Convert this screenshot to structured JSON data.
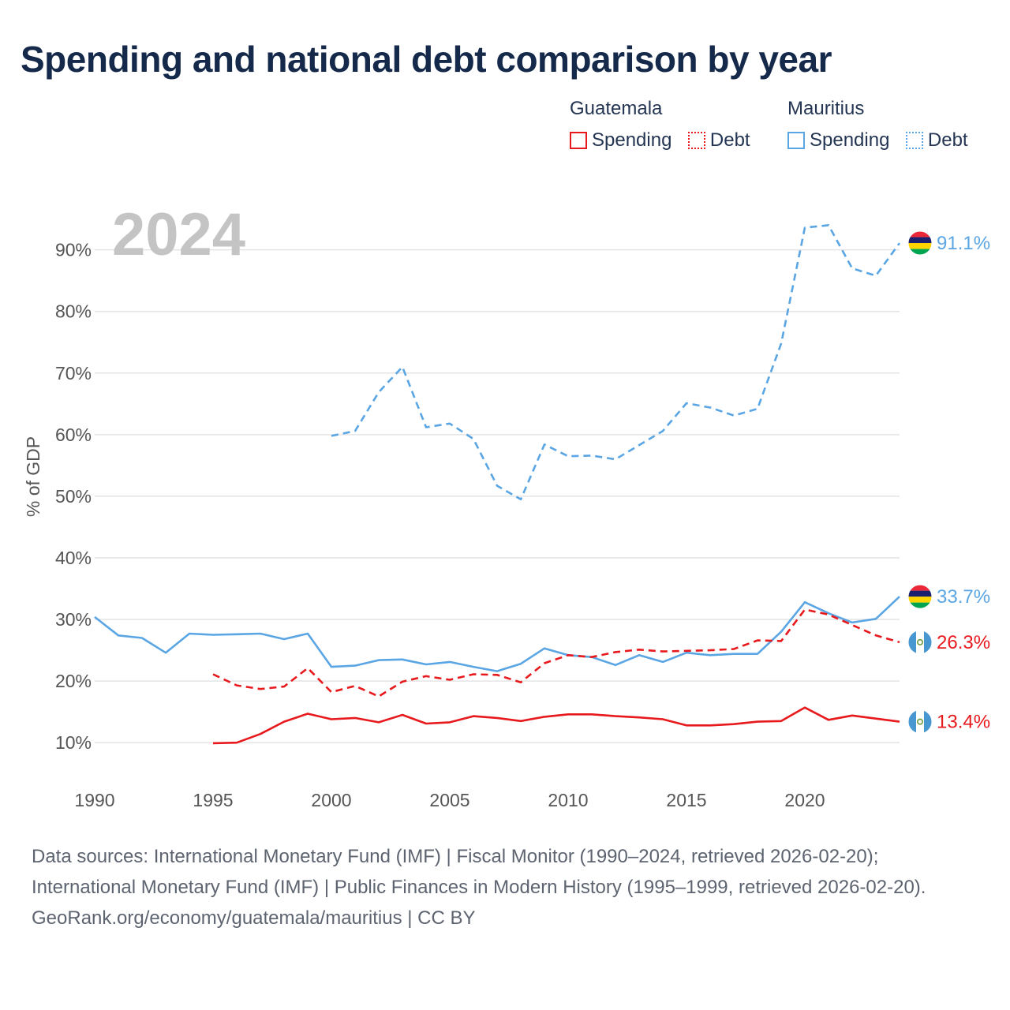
{
  "title": "Spending and national debt comparison by year",
  "legend": {
    "guatemala": {
      "name": "Guatemala",
      "spending": "Spending",
      "debt": "Debt"
    },
    "mauritius": {
      "name": "Mauritius",
      "spending": "Spending",
      "debt": "Debt"
    }
  },
  "colors": {
    "guatemala": "#e8191d",
    "mauritius": "#5aa5e3",
    "grid": "#e4e4e4"
  },
  "footer": {
    "sources": "Data sources: International Monetary Fund (IMF) | Fiscal Monitor (1990–2024, retrieved 2026-02-20); International Monetary Fund (IMF) | Public Finances in Modern History (1995–1999, retrieved 2026-02-20).",
    "credit": "GeoRank.org/economy/guatemala/mauritius | CC BY"
  },
  "chart_data": {
    "type": "line",
    "year_label": "2024",
    "ylabel": "% of GDP",
    "xlabel": "",
    "xlim": [
      1990,
      2024
    ],
    "ylim": [
      4,
      97
    ],
    "x_ticks": [
      1990,
      1995,
      2000,
      2005,
      2010,
      2015,
      2020
    ],
    "y_ticks": [
      {
        "value": 10,
        "label": "10%"
      },
      {
        "value": 20,
        "label": "20%"
      },
      {
        "value": 30,
        "label": "30%"
      },
      {
        "value": 40,
        "label": "40%"
      },
      {
        "value": 50,
        "label": "50%"
      },
      {
        "value": 60,
        "label": "60%"
      },
      {
        "value": 70,
        "label": "70%"
      },
      {
        "value": 80,
        "label": "80%"
      },
      {
        "value": 90,
        "label": "90%"
      }
    ],
    "series": [
      {
        "key": "mauritius-debt",
        "name": "Mauritius Debt",
        "country": "mauritius",
        "dashed": true,
        "x": [
          2000,
          2001,
          2002,
          2003,
          2004,
          2005,
          2006,
          2007,
          2008,
          2009,
          2010,
          2011,
          2012,
          2013,
          2014,
          2015,
          2016,
          2017,
          2018,
          2019,
          2020,
          2021,
          2022,
          2023,
          2024
        ],
        "values": [
          59.8,
          60.6,
          66.9,
          71.0,
          61.2,
          61.8,
          59.3,
          51.7,
          49.5,
          58.4,
          56.5,
          56.6,
          56.0,
          58.3,
          60.6,
          65.1,
          64.4,
          63.1,
          64.2,
          74.8,
          93.6,
          94.0,
          87.0,
          85.8,
          91.1
        ],
        "end_label": "91.1%"
      },
      {
        "key": "mauritius-spending",
        "name": "Mauritius Spending",
        "country": "mauritius",
        "dashed": false,
        "x": [
          1990,
          1991,
          1992,
          1993,
          1994,
          1995,
          1996,
          1997,
          1998,
          1999,
          2000,
          2001,
          2002,
          2003,
          2004,
          2005,
          2006,
          2007,
          2008,
          2009,
          2010,
          2011,
          2012,
          2013,
          2014,
          2015,
          2016,
          2017,
          2018,
          2019,
          2020,
          2021,
          2022,
          2023,
          2024
        ],
        "values": [
          30.4,
          27.4,
          27.0,
          24.6,
          27.7,
          27.5,
          27.6,
          27.7,
          26.8,
          27.7,
          22.3,
          22.5,
          23.4,
          23.5,
          22.7,
          23.1,
          22.3,
          21.6,
          22.8,
          25.3,
          24.2,
          23.9,
          22.6,
          24.2,
          23.1,
          24.6,
          24.2,
          24.4,
          24.4,
          28.0,
          32.8,
          31.0,
          29.5,
          30.1,
          33.7
        ],
        "end_label": "33.7%"
      },
      {
        "key": "guatemala-debt",
        "name": "Guatemala Debt",
        "country": "guatemala",
        "dashed": true,
        "x": [
          1995,
          1996,
          1997,
          1998,
          1999,
          2000,
          2001,
          2002,
          2003,
          2004,
          2005,
          2006,
          2007,
          2008,
          2009,
          2010,
          2011,
          2012,
          2013,
          2014,
          2015,
          2016,
          2017,
          2018,
          2019,
          2020,
          2021,
          2022,
          2023,
          2024
        ],
        "values": [
          21.1,
          19.3,
          18.7,
          19.1,
          22.1,
          18.2,
          19.2,
          17.5,
          19.9,
          20.8,
          20.2,
          21.1,
          21.0,
          19.8,
          22.9,
          24.2,
          23.9,
          24.7,
          25.1,
          24.8,
          24.9,
          25.0,
          25.2,
          26.6,
          26.5,
          31.6,
          30.8,
          29.1,
          27.4,
          26.3
        ],
        "end_label": "26.3%"
      },
      {
        "key": "guatemala-spending",
        "name": "Guatemala Spending",
        "country": "guatemala",
        "dashed": false,
        "x": [
          1995,
          1996,
          1997,
          1998,
          1999,
          2000,
          2001,
          2002,
          2003,
          2004,
          2005,
          2006,
          2007,
          2008,
          2009,
          2010,
          2011,
          2012,
          2013,
          2014,
          2015,
          2016,
          2017,
          2018,
          2019,
          2020,
          2021,
          2022,
          2023,
          2024
        ],
        "values": [
          9.9,
          10.0,
          11.4,
          13.4,
          14.7,
          13.8,
          14.0,
          13.3,
          14.5,
          13.1,
          13.3,
          14.3,
          14.0,
          13.5,
          14.2,
          14.6,
          14.6,
          14.3,
          14.1,
          13.8,
          12.8,
          12.8,
          13.0,
          13.4,
          13.5,
          15.7,
          13.7,
          14.4,
          13.9,
          13.4
        ],
        "end_label": "13.4%"
      }
    ]
  }
}
